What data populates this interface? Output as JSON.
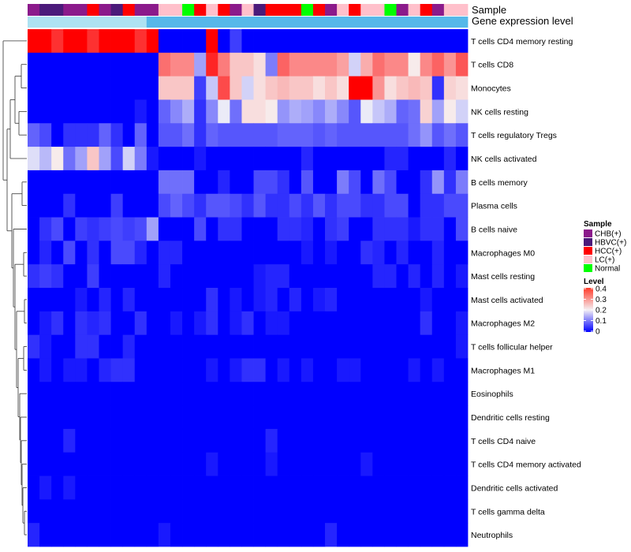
{
  "chart_data": {
    "type": "heatmap",
    "title": "",
    "annotation_tracks": [
      {
        "name": "Sample",
        "values": [
          "CHB(+)",
          "HBVC(+)",
          "HBVC(+)",
          "CHB(+)",
          "CHB(+)",
          "HCC(+)",
          "CHB(+)",
          "HBVC(+)",
          "HCC(+)",
          "CHB(+)",
          "CHB(+)",
          "LC(+)",
          "LC(+)",
          "Normal",
          "HCC(+)",
          "LC(+)",
          "HCC(+)",
          "CHB(+)",
          "LC(+)",
          "HBVC(+)",
          "HCC(+)",
          "HCC(+)",
          "HCC(+)",
          "Normal",
          "HCC(+)",
          "CHB(+)",
          "LC(+)",
          "HCC(+)",
          "LC(+)",
          "LC(+)",
          "Normal",
          "CHB(+)",
          "LC(+)",
          "HCC(+)",
          "CHB(+)",
          "LC(+)",
          "LC(+)"
        ]
      },
      {
        "name": "Gene expression level",
        "values": [
          "low",
          "low",
          "low",
          "low",
          "low",
          "low",
          "low",
          "low",
          "low",
          "low",
          "high",
          "high",
          "high",
          "high",
          "high",
          "high",
          "high",
          "high",
          "high",
          "high",
          "high",
          "high",
          "high",
          "high",
          "high",
          "high",
          "high",
          "high",
          "high",
          "high",
          "high",
          "high",
          "high",
          "high",
          "high",
          "high",
          "high"
        ]
      }
    ],
    "rows": [
      "T cells CD4 memory resting",
      "T cells CD8",
      "Monocytes",
      "NK cells resting",
      "T cells regulatory  Tregs",
      "NK cells activated",
      "B cells memory",
      "Plasma cells",
      "B cells naive",
      "Macrophages M0",
      "Mast cells resting",
      "Mast cells activated",
      "Macrophages M2",
      "T cells follicular helper",
      "Macrophages M1",
      "Eosinophils",
      "Dendritic cells resting",
      "T cells CD4 naive",
      "T cells CD4 memory activated",
      "Dendritic cells activated",
      "T cells gamma delta",
      "Neutrophils"
    ],
    "columns_count": 37,
    "values": [
      [
        0.4,
        0.4,
        0.36,
        0.4,
        0.4,
        0.36,
        0.4,
        0.4,
        0.4,
        0.36,
        0.4,
        0.0,
        0.0,
        0.0,
        0.0,
        0.4,
        0.0,
        0.05,
        0.0,
        0.0,
        0.0,
        0.0,
        0.0,
        0.0,
        0.0,
        0.0,
        0.0,
        0.0,
        0.0,
        0.0,
        0.0,
        0.0,
        0.0,
        0.0,
        0.0,
        0.0,
        0.0
      ],
      [
        0.0,
        0.0,
        0.0,
        0.0,
        0.0,
        0.0,
        0.0,
        0.0,
        0.0,
        0.0,
        0.0,
        0.31,
        0.29,
        0.29,
        0.13,
        0.37,
        0.3,
        0.24,
        0.24,
        0.22,
        0.1,
        0.32,
        0.29,
        0.29,
        0.29,
        0.29,
        0.27,
        0.17,
        0.26,
        0.31,
        0.29,
        0.29,
        0.21,
        0.29,
        0.32,
        0.28,
        0.33
      ],
      [
        0.0,
        0.0,
        0.0,
        0.0,
        0.0,
        0.0,
        0.0,
        0.0,
        0.0,
        0.0,
        0.0,
        0.24,
        0.24,
        0.24,
        0.05,
        0.16,
        0.34,
        0.24,
        0.17,
        0.22,
        0.24,
        0.25,
        0.24,
        0.24,
        0.22,
        0.24,
        0.22,
        0.4,
        0.4,
        0.28,
        0.22,
        0.24,
        0.25,
        0.24,
        0.04,
        0.23,
        0.22
      ],
      [
        0.0,
        0.0,
        0.0,
        0.0,
        0.0,
        0.0,
        0.0,
        0.0,
        0.0,
        0.02,
        0.0,
        0.08,
        0.11,
        0.14,
        0.04,
        0.11,
        0.19,
        0.09,
        0.22,
        0.22,
        0.21,
        0.12,
        0.14,
        0.13,
        0.11,
        0.14,
        0.11,
        0.07,
        0.19,
        0.16,
        0.14,
        0.08,
        0.09,
        0.23,
        0.13,
        0.21,
        0.17
      ],
      [
        0.08,
        0.06,
        0.0,
        0.04,
        0.04,
        0.04,
        0.08,
        0.04,
        0.0,
        0.08,
        0.0,
        0.07,
        0.07,
        0.09,
        0.04,
        0.08,
        0.07,
        0.07,
        0.07,
        0.07,
        0.07,
        0.08,
        0.08,
        0.08,
        0.07,
        0.08,
        0.07,
        0.07,
        0.07,
        0.07,
        0.07,
        0.07,
        0.09,
        0.12,
        0.07,
        0.09,
        0.07
      ],
      [
        0.18,
        0.15,
        0.21,
        0.09,
        0.13,
        0.24,
        0.13,
        0.06,
        0.17,
        0.1,
        0.02,
        0.0,
        0.0,
        0.0,
        0.02,
        0.0,
        0.0,
        0.0,
        0.0,
        0.0,
        0.0,
        0.0,
        0.0,
        0.03,
        0.0,
        0.0,
        0.0,
        0.0,
        0.0,
        0.0,
        0.03,
        0.03,
        0.0,
        0.0,
        0.0,
        0.03,
        0.0
      ],
      [
        0.0,
        0.0,
        0.0,
        0.0,
        0.0,
        0.0,
        0.0,
        0.0,
        0.0,
        0.0,
        0.0,
        0.09,
        0.09,
        0.09,
        0.0,
        0.0,
        0.03,
        0.0,
        0.0,
        0.06,
        0.06,
        0.04,
        0.0,
        0.07,
        0.0,
        0.0,
        0.1,
        0.06,
        0.0,
        0.09,
        0.06,
        0.0,
        0.0,
        0.04,
        0.12,
        0.04,
        0.1
      ],
      [
        0.0,
        0.0,
        0.0,
        0.04,
        0.0,
        0.0,
        0.0,
        0.05,
        0.0,
        0.0,
        0.0,
        0.06,
        0.08,
        0.06,
        0.04,
        0.07,
        0.07,
        0.06,
        0.04,
        0.07,
        0.04,
        0.04,
        0.06,
        0.04,
        0.07,
        0.04,
        0.06,
        0.06,
        0.04,
        0.04,
        0.06,
        0.06,
        0.0,
        0.04,
        0.04,
        0.06,
        0.06
      ],
      [
        0.0,
        0.04,
        0.06,
        0.0,
        0.05,
        0.04,
        0.05,
        0.06,
        0.05,
        0.06,
        0.13,
        0.0,
        0.0,
        0.0,
        0.06,
        0.0,
        0.04,
        0.04,
        0.0,
        0.0,
        0.0,
        0.04,
        0.04,
        0.03,
        0.0,
        0.04,
        0.05,
        0.0,
        0.0,
        0.04,
        0.04,
        0.04,
        0.02,
        0.04,
        0.04,
        0.0,
        0.06
      ],
      [
        0.0,
        0.03,
        0.0,
        0.06,
        0.0,
        0.04,
        0.0,
        0.06,
        0.06,
        0.03,
        0.0,
        0.03,
        0.03,
        0.0,
        0.0,
        0.0,
        0.0,
        0.0,
        0.0,
        0.0,
        0.0,
        0.0,
        0.0,
        0.02,
        0.0,
        0.02,
        0.0,
        0.0,
        0.04,
        0.03,
        0.0,
        0.03,
        0.0,
        0.0,
        0.03,
        0.0,
        0.0
      ],
      [
        0.04,
        0.05,
        0.04,
        0.0,
        0.0,
        0.05,
        0.0,
        0.0,
        0.0,
        0.0,
        0.0,
        0.03,
        0.0,
        0.0,
        0.0,
        0.0,
        0.0,
        0.0,
        0.0,
        0.02,
        0.03,
        0.03,
        0.0,
        0.0,
        0.0,
        0.0,
        0.0,
        0.0,
        0.0,
        0.03,
        0.03,
        0.0,
        0.03,
        0.0,
        0.03,
        0.0,
        0.02
      ],
      [
        0.0,
        0.0,
        0.0,
        0.0,
        0.02,
        0.0,
        0.03,
        0.0,
        0.03,
        0.0,
        0.0,
        0.0,
        0.0,
        0.0,
        0.0,
        0.04,
        0.0,
        0.02,
        0.0,
        0.02,
        0.03,
        0.0,
        0.03,
        0.0,
        0.02,
        0.03,
        0.0,
        0.0,
        0.0,
        0.0,
        0.0,
        0.0,
        0.0,
        0.02,
        0.0,
        0.0,
        0.0
      ],
      [
        0.0,
        0.02,
        0.04,
        0.0,
        0.04,
        0.03,
        0.04,
        0.0,
        0.0,
        0.04,
        0.0,
        0.0,
        0.02,
        0.0,
        0.02,
        0.04,
        0.0,
        0.02,
        0.04,
        0.0,
        0.02,
        0.02,
        0.0,
        0.0,
        0.0,
        0.0,
        0.0,
        0.0,
        0.0,
        0.0,
        0.0,
        0.0,
        0.0,
        0.04,
        0.0,
        0.0,
        0.02
      ],
      [
        0.04,
        0.02,
        0.0,
        0.0,
        0.04,
        0.04,
        0.0,
        0.0,
        0.03,
        0.0,
        0.0,
        0.0,
        0.0,
        0.0,
        0.0,
        0.0,
        0.0,
        0.0,
        0.0,
        0.0,
        0.0,
        0.0,
        0.0,
        0.0,
        0.0,
        0.0,
        0.0,
        0.0,
        0.0,
        0.0,
        0.0,
        0.0,
        0.0,
        0.0,
        0.0,
        0.0,
        0.02
      ],
      [
        0.0,
        0.02,
        0.0,
        0.02,
        0.02,
        0.0,
        0.03,
        0.04,
        0.04,
        0.0,
        0.0,
        0.0,
        0.0,
        0.0,
        0.0,
        0.02,
        0.0,
        0.02,
        0.04,
        0.04,
        0.0,
        0.02,
        0.0,
        0.02,
        0.0,
        0.0,
        0.02,
        0.02,
        0.0,
        0.0,
        0.0,
        0.0,
        0.02,
        0.0,
        0.02,
        0.0,
        0.0
      ],
      [
        0.0,
        0.0,
        0.0,
        0.0,
        0.0,
        0.0,
        0.0,
        0.0,
        0.0,
        0.0,
        0.0,
        0.0,
        0.0,
        0.0,
        0.0,
        0.0,
        0.0,
        0.0,
        0.0,
        0.0,
        0.0,
        0.0,
        0.0,
        0.0,
        0.0,
        0.0,
        0.0,
        0.0,
        0.0,
        0.0,
        0.0,
        0.0,
        0.0,
        0.0,
        0.0,
        0.0,
        0.0
      ],
      [
        0.0,
        0.0,
        0.0,
        0.0,
        0.0,
        0.0,
        0.0,
        0.0,
        0.0,
        0.0,
        0.0,
        0.0,
        0.0,
        0.0,
        0.0,
        0.0,
        0.0,
        0.0,
        0.0,
        0.0,
        0.0,
        0.0,
        0.0,
        0.0,
        0.0,
        0.0,
        0.0,
        0.0,
        0.0,
        0.0,
        0.0,
        0.0,
        0.0,
        0.0,
        0.0,
        0.0,
        0.0
      ],
      [
        0.0,
        0.0,
        0.0,
        0.03,
        0.0,
        0.0,
        0.0,
        0.0,
        0.0,
        0.0,
        0.0,
        0.0,
        0.0,
        0.0,
        0.0,
        0.0,
        0.0,
        0.0,
        0.0,
        0.0,
        0.03,
        0.0,
        0.0,
        0.0,
        0.0,
        0.0,
        0.0,
        0.0,
        0.0,
        0.0,
        0.0,
        0.0,
        0.0,
        0.0,
        0.0,
        0.0,
        0.0
      ],
      [
        0.0,
        0.0,
        0.0,
        0.0,
        0.0,
        0.0,
        0.0,
        0.0,
        0.0,
        0.0,
        0.0,
        0.0,
        0.0,
        0.0,
        0.0,
        0.02,
        0.0,
        0.0,
        0.0,
        0.0,
        0.02,
        0.0,
        0.0,
        0.0,
        0.0,
        0.0,
        0.0,
        0.0,
        0.02,
        0.0,
        0.0,
        0.0,
        0.0,
        0.0,
        0.0,
        0.0,
        0.0
      ],
      [
        0.0,
        0.02,
        0.0,
        0.02,
        0.0,
        0.0,
        0.0,
        0.0,
        0.0,
        0.0,
        0.0,
        0.0,
        0.0,
        0.0,
        0.0,
        0.0,
        0.0,
        0.0,
        0.0,
        0.0,
        0.0,
        0.0,
        0.0,
        0.0,
        0.0,
        0.0,
        0.0,
        0.0,
        0.0,
        0.0,
        0.0,
        0.0,
        0.0,
        0.0,
        0.0,
        0.0,
        0.0
      ],
      [
        0.0,
        0.0,
        0.0,
        0.0,
        0.0,
        0.0,
        0.0,
        0.0,
        0.0,
        0.0,
        0.0,
        0.0,
        0.0,
        0.0,
        0.0,
        0.0,
        0.0,
        0.0,
        0.0,
        0.0,
        0.0,
        0.0,
        0.0,
        0.0,
        0.0,
        0.0,
        0.0,
        0.0,
        0.0,
        0.0,
        0.0,
        0.0,
        0.0,
        0.0,
        0.0,
        0.0,
        0.0
      ],
      [
        0.03,
        0.0,
        0.0,
        0.0,
        0.0,
        0.0,
        0.0,
        0.0,
        0.0,
        0.0,
        0.0,
        0.02,
        0.0,
        0.0,
        0.0,
        0.0,
        0.0,
        0.0,
        0.0,
        0.0,
        0.0,
        0.0,
        0.0,
        0.0,
        0.0,
        0.03,
        0.0,
        0.0,
        0.0,
        0.0,
        0.0,
        0.0,
        0.0,
        0.0,
        0.0,
        0.0,
        0.0
      ]
    ],
    "legend": {
      "sample": {
        "title": "Sample",
        "entries": [
          {
            "label": "CHB(+)",
            "color": "#8b1a8b"
          },
          {
            "label": "HBVC(+)",
            "color": "#4b1a7a"
          },
          {
            "label": "HCC(+)",
            "color": "#ff0000"
          },
          {
            "label": "LC(+)",
            "color": "#ffc0cb"
          },
          {
            "label": "Normal",
            "color": "#00ff00"
          }
        ]
      },
      "level": {
        "title": "Level",
        "ticks": [
          "0.4",
          "0.3",
          "0.2",
          "0.1",
          "0"
        ],
        "range": [
          0,
          0.4
        ]
      }
    },
    "colorscale": {
      "low": "#0000ff",
      "mid": "#f7f7f7",
      "high": "#ff0000",
      "mid_value": 0.2
    },
    "gene_expression_colors": {
      "low": "#aee2f2",
      "high": "#56b8e9"
    }
  }
}
